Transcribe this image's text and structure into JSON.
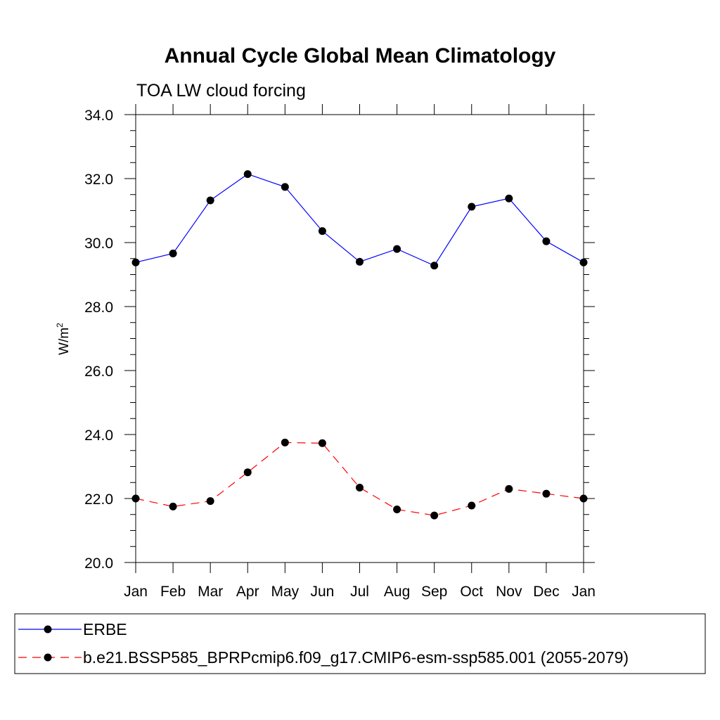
{
  "chart_data": {
    "type": "line",
    "title": "Annual Cycle Global Mean Climatology",
    "subtitle": "TOA LW cloud forcing",
    "ylabel_base": "W/m",
    "ylabel_sup": "2",
    "xlabel": "",
    "categories": [
      "Jan",
      "Feb",
      "Mar",
      "Apr",
      "May",
      "Jun",
      "Jul",
      "Aug",
      "Sep",
      "Oct",
      "Nov",
      "Dec",
      "Jan"
    ],
    "ylim": [
      20.0,
      34.0
    ],
    "yticks": [
      "20.0",
      "22.0",
      "24.0",
      "26.0",
      "28.0",
      "30.0",
      "32.0",
      "34.0"
    ],
    "grid": false,
    "legend_position": "bottom",
    "series": [
      {
        "name": "ERBE",
        "color": "#0000ff",
        "dash": "solid",
        "values": [
          29.38,
          29.66,
          31.32,
          32.14,
          31.74,
          30.36,
          29.4,
          29.8,
          29.28,
          31.12,
          31.38,
          30.04,
          29.38
        ]
      },
      {
        "name": "b.e21.BSSP585_BPRPcmip6.f09_g17.CMIP6-esm-ssp585.001 (2055-2079)",
        "color": "#ff0000",
        "dash": "dashed",
        "values": [
          22.0,
          21.75,
          21.92,
          22.82,
          23.75,
          23.73,
          22.34,
          21.66,
          21.47,
          21.78,
          22.3,
          22.15,
          22.0
        ]
      }
    ]
  }
}
